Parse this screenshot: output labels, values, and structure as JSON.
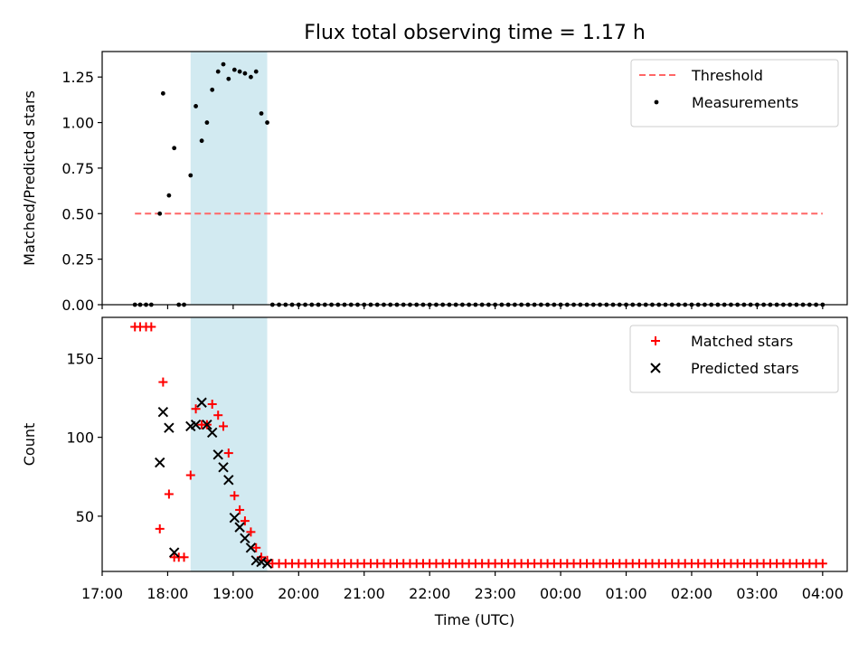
{
  "chart_data": {
    "title": "Flux total observing time = 1.17 h",
    "xlabel": "Time (UTC)",
    "x_unit": "hours since 17:00 UTC",
    "xlim": [
      0,
      11.375
    ],
    "x_ticks": [
      0,
      1,
      2,
      3,
      4,
      5,
      6,
      7,
      8,
      9,
      10,
      11
    ],
    "x_tick_labels": [
      "17:00",
      "18:00",
      "19:00",
      "20:00",
      "21:00",
      "22:00",
      "23:00",
      "00:00",
      "01:00",
      "02:00",
      "03:00",
      "04:00"
    ],
    "shaded_interval": {
      "start": 1.35,
      "end": 2.52,
      "color": "#add8e6"
    },
    "panels": [
      {
        "type": "scatter",
        "ylabel": "Matched/Predicted stars",
        "ylim": [
          0,
          1.39
        ],
        "y_ticks": [
          0,
          0.25,
          0.5,
          0.75,
          1.0,
          1.25
        ],
        "y_tick_labels": [
          "0.00",
          "0.25",
          "0.50",
          "0.75",
          "1.00",
          "1.25"
        ],
        "threshold": {
          "name": "Threshold",
          "value": 0.5,
          "x_range": [
            0.5,
            11.0
          ],
          "color": "#ff6666"
        },
        "series": [
          {
            "name": "Measurements",
            "marker": "dot",
            "color": "#000000",
            "x": [
              0.5,
              0.58,
              0.67,
              0.75,
              1.17,
              1.25,
              2.6,
              2.7,
              2.8,
              2.9,
              3.0,
              3.1,
              3.2,
              3.3,
              3.4,
              3.5,
              3.6,
              3.7,
              3.8,
              3.9,
              4.0,
              4.1,
              4.2,
              4.3,
              4.4,
              4.5,
              4.6,
              4.7,
              4.8,
              4.9,
              5.0,
              5.1,
              5.2,
              5.3,
              5.4,
              5.5,
              5.6,
              5.7,
              5.8,
              5.9,
              6.0,
              6.1,
              6.2,
              6.3,
              6.4,
              6.5,
              6.6,
              6.7,
              6.8,
              6.9,
              7.0,
              7.1,
              7.2,
              7.3,
              7.4,
              7.5,
              7.6,
              7.7,
              7.8,
              7.9,
              8.0,
              8.1,
              8.2,
              8.3,
              8.4,
              8.5,
              8.6,
              8.7,
              8.8,
              8.9,
              9.0,
              9.1,
              9.2,
              9.3,
              9.4,
              9.5,
              9.6,
              9.7,
              9.8,
              9.9,
              10.0,
              10.1,
              10.2,
              10.3,
              10.4,
              10.5,
              10.6,
              10.7,
              10.8,
              10.9,
              11.0,
              0.88,
              0.93,
              1.02,
              1.1,
              1.35,
              1.43,
              1.52,
              1.6,
              1.68,
              1.77,
              1.85,
              1.93,
              2.02,
              2.1,
              2.18,
              2.27,
              2.35,
              2.43,
              2.52
            ],
            "y": [
              0,
              0,
              0,
              0,
              0,
              0,
              0,
              0,
              0,
              0,
              0,
              0,
              0,
              0,
              0,
              0,
              0,
              0,
              0,
              0,
              0,
              0,
              0,
              0,
              0,
              0,
              0,
              0,
              0,
              0,
              0,
              0,
              0,
              0,
              0,
              0,
              0,
              0,
              0,
              0,
              0,
              0,
              0,
              0,
              0,
              0,
              0,
              0,
              0,
              0,
              0,
              0,
              0,
              0,
              0,
              0,
              0,
              0,
              0,
              0,
              0,
              0,
              0,
              0,
              0,
              0,
              0,
              0,
              0,
              0,
              0,
              0,
              0,
              0,
              0,
              0,
              0,
              0,
              0,
              0,
              0,
              0,
              0,
              0,
              0,
              0,
              0,
              0,
              0,
              0,
              0,
              0.5,
              1.16,
              0.6,
              0.86,
              0.71,
              1.09,
              0.9,
              1.0,
              1.18,
              1.28,
              1.32,
              1.24,
              1.29,
              1.28,
              1.27,
              1.25,
              1.28,
              1.05,
              1.0
            ]
          }
        ],
        "legend_position": "top-right"
      },
      {
        "type": "scatter",
        "ylabel": "Count",
        "ylim": [
          15,
          176
        ],
        "y_ticks": [
          50,
          100,
          150
        ],
        "y_tick_labels": [
          "50",
          "100",
          "150"
        ],
        "series": [
          {
            "name": "Matched stars",
            "marker": "plus",
            "color": "#ff0000",
            "x": [
              0.5,
              0.58,
              0.67,
              0.75,
              0.88,
              0.93,
              1.02,
              1.1,
              1.17,
              1.25,
              1.35,
              1.43,
              1.52,
              1.6,
              1.68,
              1.77,
              1.85,
              1.93,
              2.02,
              2.1,
              2.18,
              2.27,
              2.35,
              2.43,
              2.52,
              2.6,
              2.7,
              2.8,
              2.9,
              3.0,
              3.1,
              3.2,
              3.3,
              3.4,
              3.5,
              3.6,
              3.7,
              3.8,
              3.9,
              4.0,
              4.1,
              4.2,
              4.3,
              4.4,
              4.5,
              4.6,
              4.7,
              4.8,
              4.9,
              5.0,
              5.1,
              5.2,
              5.3,
              5.4,
              5.5,
              5.6,
              5.7,
              5.8,
              5.9,
              6.0,
              6.1,
              6.2,
              6.3,
              6.4,
              6.5,
              6.6,
              6.7,
              6.8,
              6.9,
              7.0,
              7.1,
              7.2,
              7.3,
              7.4,
              7.5,
              7.6,
              7.7,
              7.8,
              7.9,
              8.0,
              8.1,
              8.2,
              8.3,
              8.4,
              8.5,
              8.6,
              8.7,
              8.8,
              8.9,
              9.0,
              9.1,
              9.2,
              9.3,
              9.4,
              9.5,
              9.6,
              9.7,
              9.8,
              9.9,
              10.0,
              10.1,
              10.2,
              10.3,
              10.4,
              10.5,
              10.6,
              10.7,
              10.8,
              10.9,
              11.0
            ],
            "y": [
              170,
              170,
              170,
              170,
              42,
              135,
              64,
              24,
              24,
              24,
              76,
              118,
              108,
              108,
              121,
              114,
              107,
              90,
              63,
              54,
              47,
              40,
              30,
              24,
              22,
              20,
              20,
              20,
              20,
              20,
              20,
              20,
              20,
              20,
              20,
              20,
              20,
              20,
              20,
              20,
              20,
              20,
              20,
              20,
              20,
              20,
              20,
              20,
              20,
              20,
              20,
              20,
              20,
              20,
              20,
              20,
              20,
              20,
              20,
              20,
              20,
              20,
              20,
              20,
              20,
              20,
              20,
              20,
              20,
              20,
              20,
              20,
              20,
              20,
              20,
              20,
              20,
              20,
              20,
              20,
              20,
              20,
              20,
              20,
              20,
              20,
              20,
              20,
              20,
              20,
              20,
              20,
              20,
              20,
              20,
              20,
              20,
              20,
              20,
              20,
              20,
              20,
              20,
              20,
              20,
              20,
              20,
              20,
              20,
              20
            ]
          },
          {
            "name": "Predicted stars",
            "marker": "cross",
            "color": "#000000",
            "x": [
              0.88,
              0.93,
              1.02,
              1.1,
              1.35,
              1.43,
              1.52,
              1.6,
              1.68,
              1.77,
              1.85,
              1.93,
              2.02,
              2.1,
              2.18,
              2.27,
              2.35,
              2.43,
              2.52
            ],
            "y": [
              84,
              116,
              106,
              27,
              107,
              108,
              122,
              108,
              103,
              89,
              81,
              73,
              49,
              43,
              36,
              30,
              22,
              21,
              20
            ]
          }
        ],
        "legend_position": "top-right"
      }
    ]
  }
}
